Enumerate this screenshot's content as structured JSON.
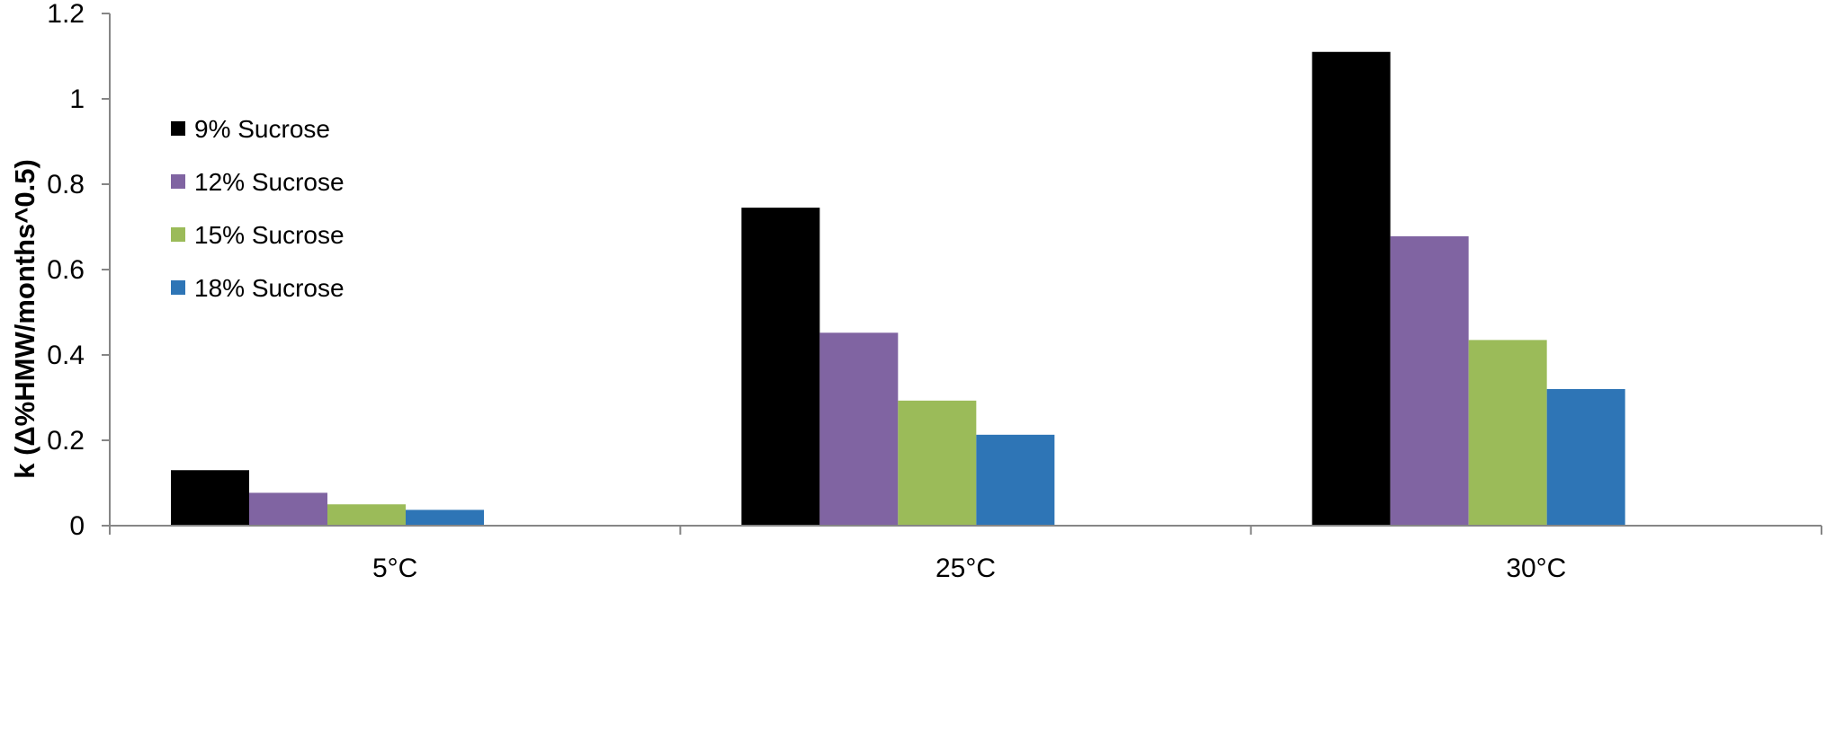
{
  "chart_data": {
    "type": "bar",
    "title": "",
    "xlabel": "",
    "ylabel": "k (Δ%HMW/months^0.5)",
    "ylim": [
      0,
      1.2
    ],
    "yticks": [
      "0",
      "0.2",
      "0.4",
      "0.6",
      "0.8",
      "1",
      "1.2"
    ],
    "categories": [
      "5°C",
      "25°C",
      "30°C"
    ],
    "series": [
      {
        "name": "9% Sucrose",
        "color": "#000000",
        "values": [
          0.13,
          0.745,
          1.11
        ]
      },
      {
        "name": "12% Sucrose",
        "color": "#8064A2",
        "values": [
          0.077,
          0.452,
          0.678
        ]
      },
      {
        "name": "15% Sucrose",
        "color": "#9BBB59",
        "values": [
          0.05,
          0.293,
          0.435
        ]
      },
      {
        "name": "18% Sucrose",
        "color": "#2E75B6",
        "values": [
          0.037,
          0.213,
          0.32
        ]
      }
    ],
    "grid": false,
    "legend_position": "top-left",
    "axis_color": "#868686"
  }
}
